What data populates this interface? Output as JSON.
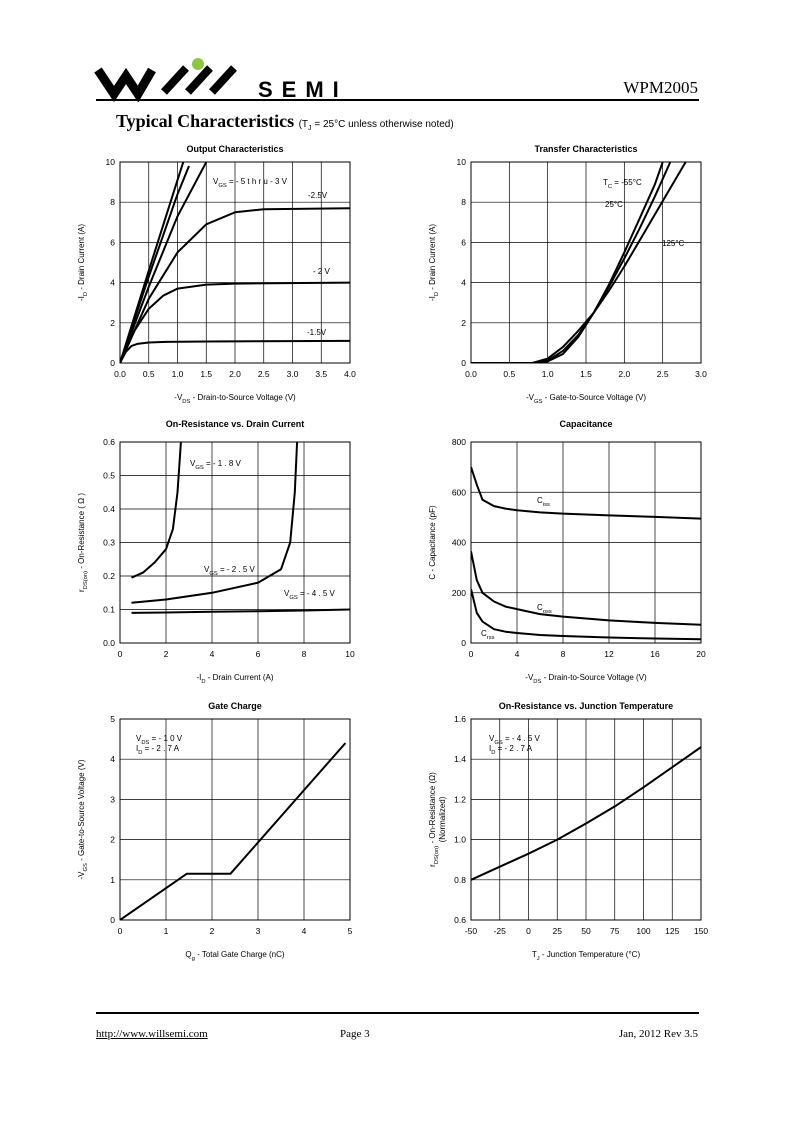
{
  "header": {
    "logo_text": "SEMI",
    "logo_accent_color": "#8DC63F",
    "part_number": "WPM2005"
  },
  "section": {
    "title": "Typical Characteristics",
    "note_prefix": "(T",
    "note_sub": "J",
    "note_suffix": " = 25°C unless otherwise noted)"
  },
  "footer": {
    "url": "http://www.willsemi.com",
    "page": "Page 3",
    "date_rev": "Jan,  2012 Rev 3.5"
  },
  "chart_data": [
    {
      "id": "output",
      "type": "line",
      "title": "Output Characteristics",
      "xlabel": "-V_DS  -  Drain-to-Source Voltage (V)",
      "ylabel": "-I_D  -  Drain Current (A)",
      "xlim": [
        0,
        4
      ],
      "ylim": [
        0,
        10
      ],
      "xticks": [
        "0.0",
        "0.5",
        "1.0",
        "1.5",
        "2.0",
        "2.5",
        "3.0",
        "3.5",
        "4.0"
      ],
      "yticks": [
        "0",
        "2",
        "4",
        "6",
        "8",
        "10"
      ],
      "annotations": [
        "V_GS = - 5 t h r u  - 3 V",
        "-2.5V",
        "- 2 V",
        "-1.5V"
      ],
      "series": [
        {
          "name": "-1.5V",
          "x": [
            0,
            0.1,
            0.2,
            0.3,
            0.5,
            0.8,
            1.5,
            4.0
          ],
          "y": [
            0,
            0.55,
            0.85,
            0.95,
            1.02,
            1.05,
            1.07,
            1.1
          ]
        },
        {
          "name": "-2V",
          "x": [
            0,
            0.25,
            0.5,
            0.75,
            1.0,
            1.5,
            2.0,
            4.0
          ],
          "y": [
            0,
            1.6,
            2.7,
            3.35,
            3.7,
            3.9,
            3.95,
            4.0
          ]
        },
        {
          "name": "-2.5V",
          "x": [
            0,
            0.5,
            1.0,
            1.5,
            2.0,
            2.5,
            4.0
          ],
          "y": [
            0,
            3.2,
            5.5,
            6.9,
            7.5,
            7.65,
            7.7
          ]
        },
        {
          "name": "-3V",
          "x": [
            0,
            0.5,
            1.0,
            1.5
          ],
          "y": [
            0,
            3.8,
            7.3,
            10
          ]
        },
        {
          "name": "-4V",
          "x": [
            0,
            0.5,
            1.0,
            1.2
          ],
          "y": [
            0,
            4.3,
            8.4,
            9.8
          ]
        },
        {
          "name": "-5V",
          "x": [
            0,
            0.5,
            1.0,
            1.1
          ],
          "y": [
            0,
            4.6,
            9.1,
            10
          ]
        }
      ]
    },
    {
      "id": "transfer",
      "type": "line",
      "title": "Transfer Characteristics",
      "xlabel": "-V_GS  -  Gate-to-Source Voltage (V)",
      "ylabel": "-I_D  -  Drain Current (A)",
      "xlim": [
        0,
        3
      ],
      "ylim": [
        0,
        10
      ],
      "xticks": [
        "0.0",
        "0.5",
        "1.0",
        "1.5",
        "2.0",
        "2.5",
        "3.0"
      ],
      "yticks": [
        "0",
        "2",
        "4",
        "6",
        "8",
        "10"
      ],
      "annotations": [
        "T_C = -55°C",
        "25°C",
        "125°C"
      ],
      "series": [
        {
          "name": "-55°C",
          "x": [
            0,
            0.8,
            1.0,
            1.2,
            1.4,
            1.6,
            1.8,
            2.0,
            2.2,
            2.4,
            2.5
          ],
          "y": [
            0,
            0,
            0.08,
            0.45,
            1.3,
            2.5,
            3.9,
            5.5,
            7.2,
            8.9,
            10
          ]
        },
        {
          "name": "25°C",
          "x": [
            0,
            0.8,
            1.0,
            1.2,
            1.4,
            1.6,
            1.8,
            2.0,
            2.2,
            2.4,
            2.6
          ],
          "y": [
            0,
            0,
            0.12,
            0.6,
            1.4,
            2.5,
            3.8,
            5.2,
            6.7,
            8.3,
            10
          ]
        },
        {
          "name": "125°C",
          "x": [
            0,
            0.8,
            1.0,
            1.2,
            1.4,
            1.6,
            1.8,
            2.0,
            2.2,
            2.4,
            2.6,
            2.8
          ],
          "y": [
            0,
            0,
            0.22,
            0.8,
            1.6,
            2.5,
            3.6,
            4.8,
            6.1,
            7.4,
            8.7,
            10
          ]
        }
      ]
    },
    {
      "id": "onres_id",
      "type": "line",
      "title": "On-Resistance vs. Drain Current",
      "xlabel": "-I_D  -  Drain Current (A)",
      "ylabel": "r_DS(on)  -  On-Resistance ( Ω )",
      "xlim": [
        0,
        10
      ],
      "ylim": [
        0,
        0.6
      ],
      "xticks": [
        "0",
        "2",
        "4",
        "6",
        "8",
        "10"
      ],
      "yticks": [
        "0.0",
        "0.1",
        "0.2",
        "0.3",
        "0.4",
        "0.5",
        "0.6"
      ],
      "annotations": [
        "V_GS = - 1 . 8 V",
        "V_GS = - 2 . 5 V",
        "V_GS = - 4 . 5 V"
      ],
      "series": [
        {
          "name": "-1.8V",
          "x": [
            0.5,
            1.0,
            1.5,
            2.0,
            2.3,
            2.5,
            2.6,
            2.65
          ],
          "y": [
            0.195,
            0.21,
            0.24,
            0.28,
            0.34,
            0.45,
            0.55,
            0.6
          ]
        },
        {
          "name": "-2.5V",
          "x": [
            0.5,
            2.0,
            4.0,
            6.0,
            7.0,
            7.4,
            7.6,
            7.7
          ],
          "y": [
            0.12,
            0.13,
            0.15,
            0.18,
            0.22,
            0.3,
            0.45,
            0.6
          ]
        },
        {
          "name": "-4.5V",
          "x": [
            0.5,
            2.0,
            4.0,
            6.0,
            8.0,
            10.0
          ],
          "y": [
            0.09,
            0.091,
            0.093,
            0.095,
            0.097,
            0.1
          ]
        }
      ]
    },
    {
      "id": "capacitance",
      "type": "line",
      "title": "Capacitance",
      "xlabel": "-V_DS  -  Drain-to-Source Voltage (V)",
      "ylabel": "C  -  Capacitance (pF)",
      "xlim": [
        0,
        20
      ],
      "ylim": [
        0,
        800
      ],
      "xticks": [
        "0",
        "4",
        "8",
        "12",
        "16",
        "20"
      ],
      "yticks": [
        "0",
        "200",
        "400",
        "600",
        "800"
      ],
      "annotations": [
        "C_iss",
        "C_oss",
        "C_rss"
      ],
      "series": [
        {
          "name": "Ciss",
          "x": [
            0,
            0.5,
            1,
            2,
            3,
            4,
            6,
            8,
            12,
            16,
            20
          ],
          "y": [
            700,
            630,
            570,
            545,
            535,
            528,
            520,
            515,
            508,
            502,
            495
          ]
        },
        {
          "name": "Coss",
          "x": [
            0,
            0.5,
            1,
            2,
            3,
            4,
            6,
            8,
            12,
            16,
            20
          ],
          "y": [
            365,
            250,
            200,
            165,
            145,
            135,
            115,
            105,
            90,
            80,
            73
          ]
        },
        {
          "name": "Crss",
          "x": [
            0,
            0.5,
            1,
            2,
            3,
            4,
            6,
            8,
            12,
            16,
            20
          ],
          "y": [
            215,
            120,
            85,
            55,
            45,
            40,
            32,
            28,
            22,
            18,
            15
          ]
        }
      ]
    },
    {
      "id": "gate_charge",
      "type": "line",
      "title": "Gate Charge",
      "xlabel": "Q_g  -  Total Gate Charge (nC)",
      "ylabel": "-V_GS  -  Gate-to-Source Voltage (V)",
      "xlim": [
        0,
        5
      ],
      "ylim": [
        0,
        5
      ],
      "xticks": [
        "0",
        "1",
        "2",
        "3",
        "4",
        "5"
      ],
      "yticks": [
        "0",
        "1",
        "2",
        "3",
        "4",
        "5"
      ],
      "annotations": [
        "V_DS = - 1 0 V",
        "I_D = - 2 . 7 A"
      ],
      "series": [
        {
          "name": "VGS",
          "x": [
            0,
            1.45,
            2.4,
            4.9
          ],
          "y": [
            0,
            1.15,
            1.15,
            4.4
          ]
        }
      ]
    },
    {
      "id": "onres_tj",
      "type": "line",
      "title": "On-Resistance vs. Junction Temperature",
      "xlabel": "T_J  -  Junction Temperature (°C)",
      "ylabel": "r_DS(on)  -  On-Resistance (Ω) (Normalized)",
      "xlim": [
        -50,
        150
      ],
      "ylim": [
        0.6,
        1.6
      ],
      "xticks": [
        "-50",
        "-25",
        "0",
        "25",
        "50",
        "75",
        "100",
        "125",
        "150"
      ],
      "yticks": [
        "0.6",
        "0.8",
        "1.0",
        "1.2",
        "1.4",
        "1.6"
      ],
      "annotations": [
        "V_GS = - 4 . 5 V",
        "I_D = - 2 . 7 A"
      ],
      "series": [
        {
          "name": "rDS",
          "x": [
            -50,
            -25,
            0,
            25,
            50,
            75,
            100,
            125,
            150
          ],
          "y": [
            0.8,
            0.865,
            0.93,
            1.0,
            1.08,
            1.165,
            1.26,
            1.36,
            1.46
          ]
        }
      ]
    }
  ]
}
